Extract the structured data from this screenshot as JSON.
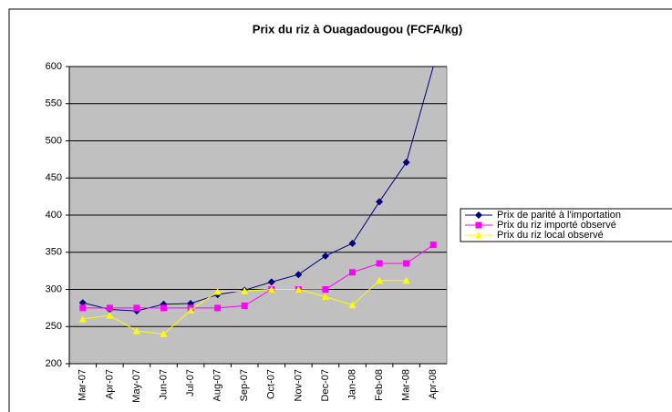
{
  "chart_data": {
    "type": "line",
    "title": "Prix du riz à Ouagadougou (FCFA/kg)",
    "categories": [
      "Mar-07",
      "Apr-07",
      "May-07",
      "Jun-07",
      "Jul-07",
      "Aug-07",
      "Sep-07",
      "Oct-07",
      "Nov-07",
      "Dec-07",
      "Jan-08",
      "Feb-08",
      "Mar-08",
      "Apr-08"
    ],
    "series": [
      {
        "name": "Prix de parité à l'importation",
        "color": "#000080",
        "marker": "diamond",
        "values": [
          282,
          273,
          271,
          280,
          281,
          293,
          299,
          310,
          320,
          345,
          362,
          418,
          471,
          600
        ]
      },
      {
        "name": "Prix du riz importé observé",
        "color": "#ff00ff",
        "marker": "square",
        "values": [
          275,
          275,
          275,
          275,
          275,
          275,
          278,
          300,
          300,
          300,
          323,
          335,
          335,
          360
        ]
      },
      {
        "name": "Prix du riz local observé",
        "color": "#ffff00",
        "marker": "triangle",
        "values": [
          260,
          265,
          244,
          240,
          272,
          297,
          298,
          300,
          300,
          290,
          279,
          312,
          312,
          null
        ]
      }
    ],
    "ylim": [
      200,
      600
    ],
    "yticks": [
      200,
      250,
      300,
      350,
      400,
      450,
      500,
      550,
      600
    ],
    "grid": true,
    "legend": "right"
  }
}
